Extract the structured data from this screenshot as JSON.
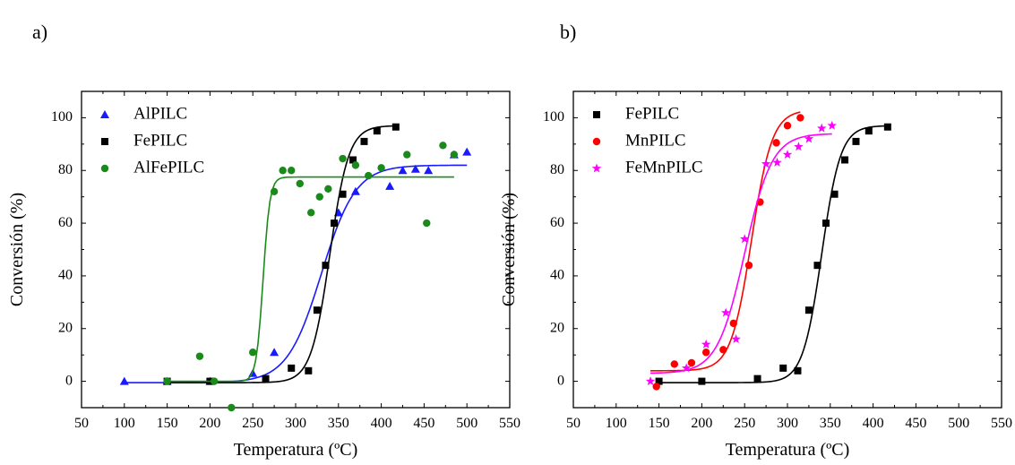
{
  "charts": [
    {
      "panel_label": "a)",
      "type": "scatter",
      "xlabel": "Temperatura (ºC)",
      "ylabel": "Conversión (%)",
      "xlim": [
        50,
        550
      ],
      "ylim": [
        -10,
        110
      ],
      "xticks": [
        50,
        100,
        150,
        200,
        250,
        300,
        350,
        400,
        450,
        500,
        550
      ],
      "yticks": [
        0,
        20,
        40,
        60,
        80,
        100
      ],
      "legend_position": "top-left",
      "series": [
        {
          "name": "AlPILC",
          "color": "#1a1aff",
          "marker": "triangle",
          "points": [
            [
              100,
              0
            ],
            [
              150,
              0
            ],
            [
              200,
              0
            ],
            [
              250,
              3
            ],
            [
              275,
              11
            ],
            [
              350,
              64
            ],
            [
              370,
              72
            ],
            [
              410,
              74
            ],
            [
              425,
              80
            ],
            [
              440,
              80.5
            ],
            [
              455,
              80
            ],
            [
              485,
              86
            ],
            [
              500,
              87
            ]
          ],
          "fit": {
            "A1": -0.5,
            "A2": 82,
            "x0": 330,
            "dx": 20,
            "from": 100,
            "to": 500
          }
        },
        {
          "name": "FePILC",
          "color": "#000000",
          "marker": "square",
          "points": [
            [
              150,
              0
            ],
            [
              200,
              0
            ],
            [
              265,
              1
            ],
            [
              295,
              5
            ],
            [
              315,
              4
            ],
            [
              325,
              27
            ],
            [
              335,
              44
            ],
            [
              345,
              60
            ],
            [
              355,
              71
            ],
            [
              367,
              84
            ],
            [
              380,
              91
            ],
            [
              395,
              95
            ],
            [
              417,
              96.5
            ]
          ],
          "fit": {
            "A1": -0.5,
            "A2": 97,
            "x0": 340,
            "dx": 11,
            "from": 150,
            "to": 417
          }
        },
        {
          "name": "AlFePILC",
          "color": "#1a8a1a",
          "marker": "circle",
          "points": [
            [
              150,
              0
            ],
            [
              188,
              9.5
            ],
            [
              205,
              0
            ],
            [
              225,
              -10
            ],
            [
              250,
              11
            ],
            [
              275,
              72
            ],
            [
              285,
              80
            ],
            [
              295,
              80
            ],
            [
              305,
              75
            ],
            [
              318,
              64
            ],
            [
              328,
              70
            ],
            [
              338,
              73
            ],
            [
              355,
              84.5
            ],
            [
              370,
              82
            ],
            [
              385,
              78
            ],
            [
              400,
              81
            ],
            [
              430,
              86
            ],
            [
              453,
              60
            ],
            [
              472,
              89.5
            ],
            [
              485,
              86
            ]
          ],
          "fit": {
            "A1": 0,
            "A2": 77.5,
            "x0": 262,
            "dx": 4,
            "from": 150,
            "to": 485
          }
        }
      ]
    },
    {
      "panel_label": "b)",
      "type": "scatter",
      "xlabel": "Temperatura (ºC)",
      "ylabel": "Conversión (%)",
      "xlim": [
        50,
        550
      ],
      "ylim": [
        -10,
        110
      ],
      "xticks": [
        50,
        100,
        150,
        200,
        250,
        300,
        350,
        400,
        450,
        500,
        550
      ],
      "yticks": [
        0,
        20,
        40,
        60,
        80,
        100
      ],
      "legend_position": "top-left",
      "series": [
        {
          "name": "FePILC",
          "color": "#000000",
          "marker": "square",
          "points": [
            [
              150,
              0
            ],
            [
              200,
              0
            ],
            [
              265,
              1
            ],
            [
              295,
              5
            ],
            [
              312,
              4
            ],
            [
              325,
              27
            ],
            [
              335,
              44
            ],
            [
              345,
              60
            ],
            [
              355,
              71
            ],
            [
              367,
              84
            ],
            [
              380,
              91
            ],
            [
              395,
              95
            ],
            [
              417,
              96.5
            ]
          ],
          "fit": {
            "A1": -0.5,
            "A2": 97,
            "x0": 340,
            "dx": 11,
            "from": 150,
            "to": 417
          }
        },
        {
          "name": "MnPILC",
          "color": "#ff0000",
          "marker": "circle",
          "points": [
            [
              147,
              -2
            ],
            [
              168,
              6.5
            ],
            [
              188,
              7
            ],
            [
              205,
              11
            ],
            [
              225,
              12
            ],
            [
              237,
              22
            ],
            [
              255,
              44
            ],
            [
              268,
              68
            ],
            [
              287,
              90.5
            ],
            [
              300,
              97
            ],
            [
              315,
              100
            ]
          ],
          "fit": {
            "A1": 4,
            "A2": 103,
            "x0": 258,
            "dx": 12,
            "from": 140,
            "to": 315
          }
        },
        {
          "name": "FeMnPILC",
          "color": "#ff00ff",
          "marker": "star",
          "points": [
            [
              140,
              0
            ],
            [
              182,
              5
            ],
            [
              205,
              14
            ],
            [
              228,
              26
            ],
            [
              240,
              16
            ],
            [
              250,
              54
            ],
            [
              275,
              82.5
            ],
            [
              288,
              83
            ],
            [
              300,
              86
            ],
            [
              313,
              89
            ],
            [
              325,
              92
            ],
            [
              340,
              96
            ],
            [
              352,
              97
            ]
          ],
          "fit": {
            "A1": 3,
            "A2": 94,
            "x0": 250,
            "dx": 16,
            "from": 140,
            "to": 352
          }
        }
      ]
    }
  ]
}
